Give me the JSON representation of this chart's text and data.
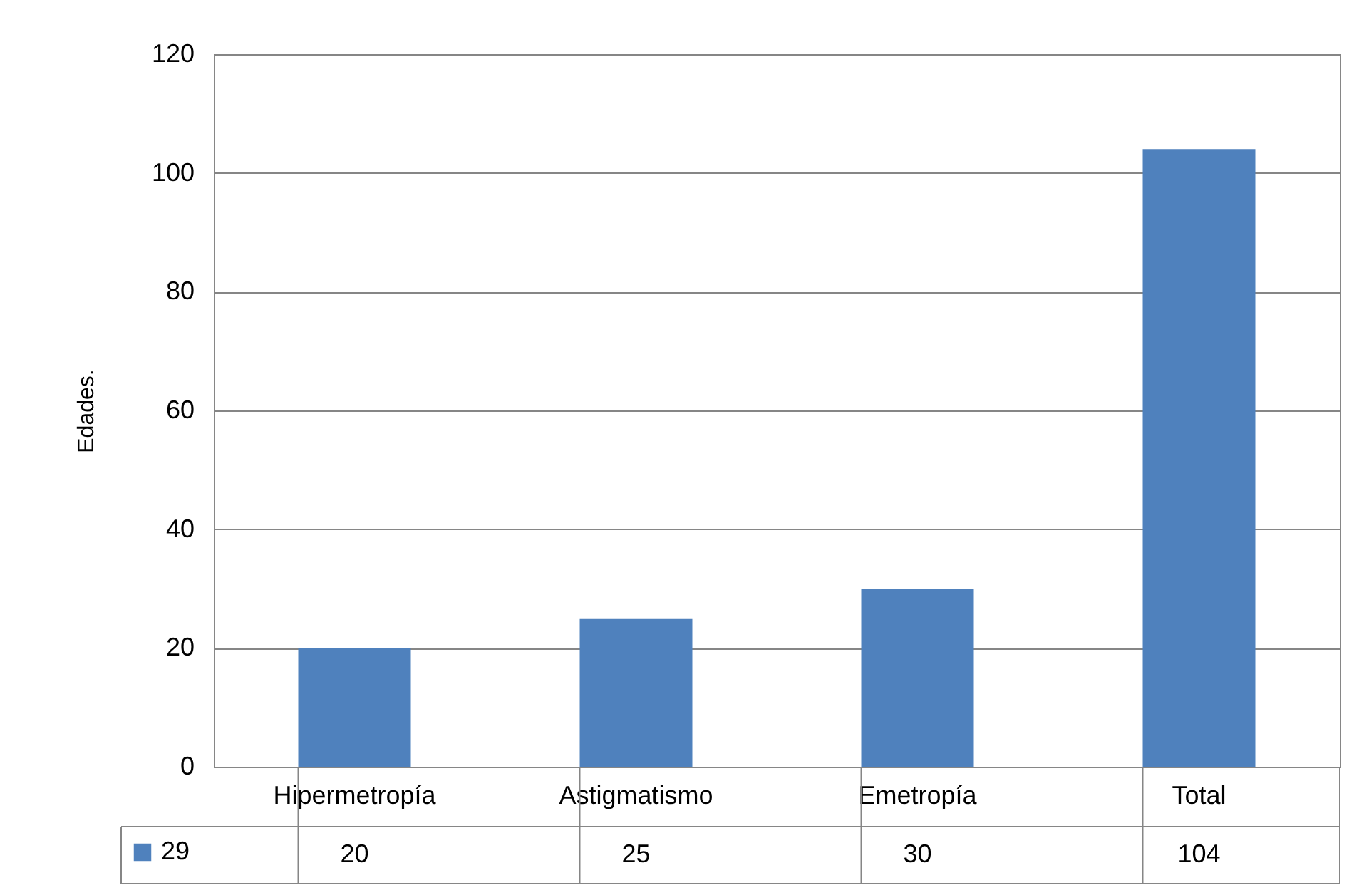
{
  "chart_data": {
    "type": "bar",
    "ylabel": "Edades.",
    "categories": [
      "Hipermetropía",
      "Astigmatismo",
      "Emetropía",
      "Total"
    ],
    "series": [
      {
        "name": "29",
        "color": "#4f81bd",
        "values": [
          20,
          25,
          30,
          104
        ]
      }
    ],
    "ylim": [
      0,
      120
    ],
    "yticks": [
      0,
      20,
      40,
      60,
      80,
      100,
      120
    ],
    "grid": "y",
    "data_labels": true,
    "legend": "bottom left"
  }
}
